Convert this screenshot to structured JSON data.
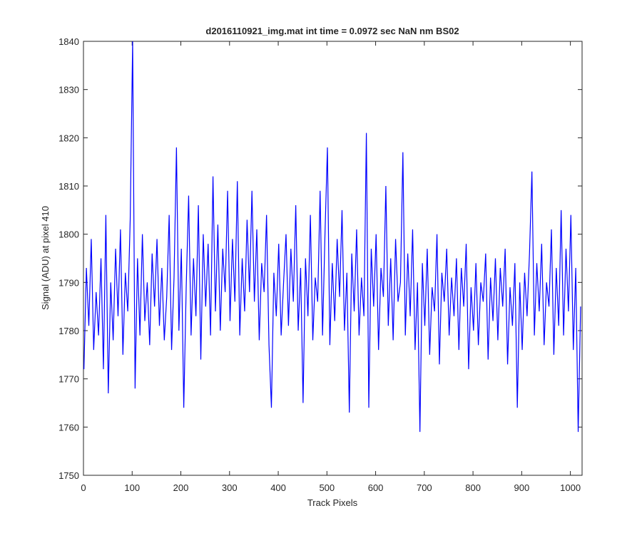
{
  "chart_data": {
    "type": "line",
    "title": "d2016110921_img.mat int time = 0.0972 sec  NaN nm BS02",
    "x_label": "Track Pixels",
    "y_label": "Signal (ADU) at pixel 410",
    "xlim": [
      0,
      1024
    ],
    "ylim": [
      1750,
      1840
    ],
    "xticks": [
      0,
      100,
      200,
      300,
      400,
      500,
      600,
      700,
      800,
      900,
      1000
    ],
    "yticks": [
      1750,
      1760,
      1770,
      1780,
      1790,
      1800,
      1810,
      1820,
      1830,
      1840
    ],
    "x": [
      1,
      6,
      11,
      16,
      21,
      26,
      31,
      36,
      41,
      46,
      51,
      56,
      61,
      66,
      71,
      76,
      81,
      86,
      91,
      96,
      101,
      106,
      111,
      116,
      121,
      126,
      131,
      136,
      141,
      146,
      151,
      156,
      161,
      166,
      171,
      176,
      181,
      186,
      191,
      196,
      201,
      206,
      211,
      216,
      221,
      226,
      231,
      236,
      241,
      246,
      251,
      256,
      261,
      266,
      271,
      276,
      281,
      286,
      291,
      296,
      301,
      306,
      311,
      316,
      321,
      326,
      331,
      336,
      341,
      346,
      351,
      356,
      361,
      366,
      371,
      376,
      381,
      386,
      391,
      396,
      401,
      406,
      411,
      416,
      421,
      426,
      431,
      436,
      441,
      446,
      451,
      456,
      461,
      466,
      471,
      476,
      481,
      486,
      491,
      496,
      501,
      506,
      511,
      516,
      521,
      526,
      531,
      536,
      541,
      546,
      551,
      556,
      561,
      566,
      571,
      576,
      581,
      586,
      591,
      596,
      601,
      606,
      611,
      616,
      621,
      626,
      631,
      636,
      641,
      646,
      651,
      656,
      661,
      666,
      671,
      676,
      681,
      686,
      691,
      696,
      701,
      706,
      711,
      716,
      721,
      726,
      731,
      736,
      741,
      746,
      751,
      756,
      761,
      766,
      771,
      776,
      781,
      786,
      791,
      796,
      801,
      806,
      811,
      816,
      821,
      826,
      831,
      836,
      841,
      846,
      851,
      856,
      861,
      866,
      871,
      876,
      881,
      886,
      891,
      896,
      901,
      906,
      911,
      916,
      921,
      926,
      931,
      936,
      941,
      946,
      951,
      956,
      961,
      966,
      971,
      976,
      981,
      986,
      991,
      996,
      1001,
      1006,
      1011,
      1016,
      1021
    ],
    "series": [
      {
        "name": "signal",
        "color": "#0000ff",
        "values": [
          1772,
          1793,
          1781,
          1799,
          1776,
          1788,
          1779,
          1795,
          1772,
          1804,
          1767,
          1790,
          1778,
          1797,
          1783,
          1801,
          1775,
          1792,
          1784,
          1803,
          1840,
          1768,
          1795,
          1779,
          1800,
          1782,
          1790,
          1777,
          1796,
          1785,
          1799,
          1781,
          1793,
          1778,
          1787,
          1804,
          1776,
          1791,
          1818,
          1780,
          1797,
          1764,
          1789,
          1808,
          1779,
          1795,
          1783,
          1806,
          1774,
          1800,
          1785,
          1798,
          1779,
          1812,
          1784,
          1802,
          1780,
          1797,
          1788,
          1809,
          1782,
          1799,
          1786,
          1811,
          1779,
          1795,
          1784,
          1803,
          1788,
          1809,
          1786,
          1801,
          1778,
          1794,
          1788,
          1804,
          1777,
          1764,
          1792,
          1783,
          1798,
          1779,
          1790,
          1800,
          1781,
          1797,
          1786,
          1806,
          1780,
          1793,
          1765,
          1795,
          1783,
          1804,
          1778,
          1791,
          1786,
          1809,
          1779,
          1800,
          1818,
          1777,
          1794,
          1782,
          1799,
          1787,
          1805,
          1780,
          1792,
          1763,
          1796,
          1784,
          1801,
          1779,
          1791,
          1783,
          1821,
          1764,
          1797,
          1785,
          1800,
          1776,
          1793,
          1787,
          1810,
          1781,
          1795,
          1778,
          1799,
          1786,
          1790,
          1817,
          1779,
          1796,
          1783,
          1801,
          1776,
          1790,
          1759,
          1794,
          1781,
          1797,
          1775,
          1789,
          1784,
          1800,
          1773,
          1792,
          1786,
          1797,
          1779,
          1791,
          1783,
          1795,
          1776,
          1793,
          1785,
          1798,
          1772,
          1789,
          1780,
          1794,
          1777,
          1790,
          1786,
          1796,
          1774,
          1791,
          1782,
          1795,
          1778,
          1793,
          1785,
          1797,
          1773,
          1789,
          1781,
          1794,
          1764,
          1790,
          1776,
          1792,
          1783,
          1796,
          1813,
          1779,
          1794,
          1784,
          1798,
          1777,
          1790,
          1785,
          1801,
          1775,
          1793,
          1781,
          1805,
          1779,
          1797,
          1784,
          1804,
          1776,
          1793,
          1759,
          1785
        ]
      }
    ]
  }
}
